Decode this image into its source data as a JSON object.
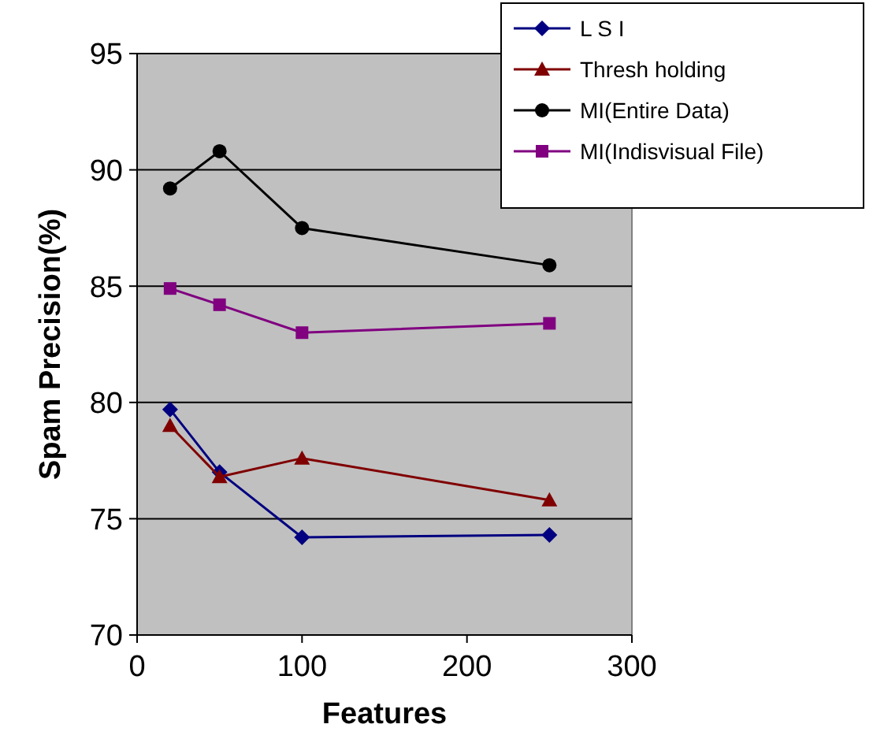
{
  "chart_data": {
    "type": "line",
    "xlabel": "Features",
    "ylabel": "Spam Precision(%)",
    "x": [
      20,
      50,
      100,
      250
    ],
    "xlim": [
      0,
      300
    ],
    "xticks": [
      0,
      100,
      200,
      300
    ],
    "ylim": [
      70,
      95
    ],
    "yticks": [
      70,
      75,
      80,
      85,
      90,
      95
    ],
    "grid": "y",
    "legend": "top right",
    "line_style": "solid",
    "series": [
      {
        "name": "L S I",
        "color": "#000080",
        "marker": "diamond",
        "values": [
          79.7,
          77.0,
          74.2,
          74.3
        ]
      },
      {
        "name": "Thresh holding",
        "color": "#800000",
        "marker": "triangle",
        "values": [
          79.0,
          76.8,
          77.6,
          75.8
        ]
      },
      {
        "name": "MI(Entire Data)",
        "color": "#000000",
        "marker": "circle",
        "values": [
          89.2,
          90.8,
          87.5,
          85.9
        ]
      },
      {
        "name": "MI(Indisvisual File)",
        "color": "#800080",
        "marker": "square",
        "values": [
          84.9,
          84.2,
          83.0,
          83.4
        ]
      }
    ]
  }
}
